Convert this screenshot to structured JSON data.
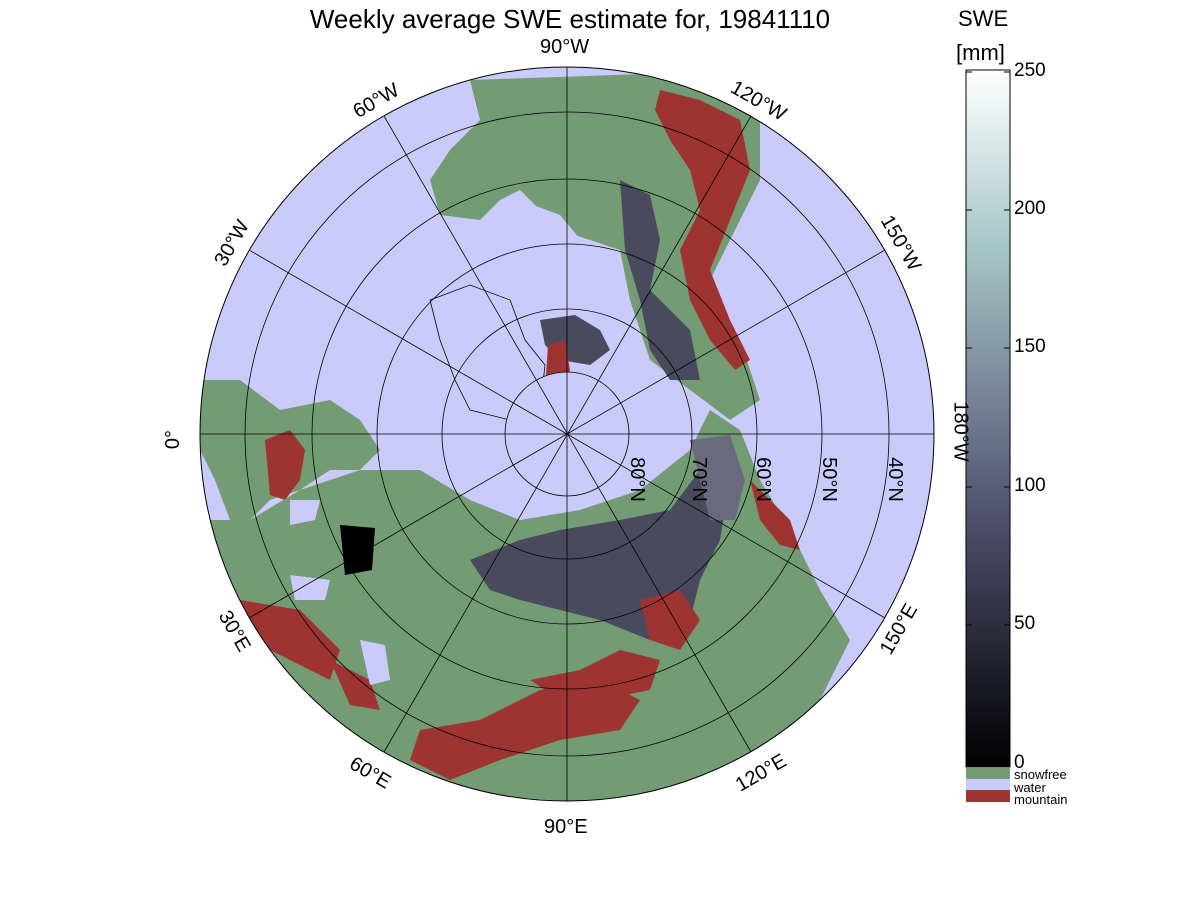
{
  "title": "Weekly average SWE estimate for, 19841110",
  "map": {
    "longitude_labels": [
      "90°W",
      "120°W",
      "150°W",
      "180°W",
      "150°E",
      "120°E",
      "90°E",
      "60°E",
      "30°E",
      "0°",
      "30°W",
      "60°W"
    ],
    "latitude_labels": [
      "80°N",
      "70°N",
      "60°N",
      "50°N",
      "40°N"
    ],
    "colors": {
      "water": "#cbcbfb",
      "snowfree": "#749c74",
      "mountain": "#9e3432",
      "snow": "#4a4a5e",
      "snow_light": "#6a6a7e",
      "border": "#000000"
    }
  },
  "colorbar": {
    "title_line1": "SWE",
    "title_line2": "[mm]",
    "ticks": [
      "250",
      "200",
      "150",
      "100",
      "50",
      "0"
    ],
    "range": [
      0,
      250
    ],
    "colormap": "bone",
    "categories": [
      {
        "label": "snowfree",
        "color": "#749c74"
      },
      {
        "label": "water",
        "color": "#cbcbfb"
      },
      {
        "label": "mountain",
        "color": "#9e3432"
      }
    ]
  }
}
